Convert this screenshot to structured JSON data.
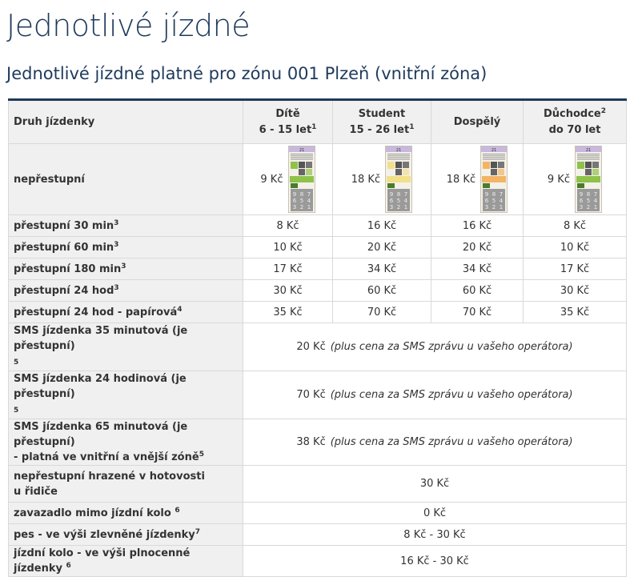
{
  "page": {
    "title": "Jednotlivé jízdné",
    "subtitle": "Jednotlivé jízdné platné pro zónu 001 Plzeň (vnitřní zóna)"
  },
  "table": {
    "header": {
      "row_label": "Druh jízdenky",
      "child_line1": "Dítě",
      "child_line2": "6 - 15 let",
      "child_sup": "1",
      "student_line1": "Student",
      "student_line2": "15 - 26 let",
      "student_sup": "1",
      "adult": "Dospělý",
      "senior_line1": "Důchodce",
      "senior_sup": "2",
      "senior_line2": "do 70 let"
    },
    "nonransfer": {
      "label": "nepřestupní",
      "child": "9 Kč",
      "student": "18 Kč",
      "adult": "18 Kč",
      "senior": "9 Kč",
      "ticket_number": "21"
    },
    "rows": [
      {
        "label": "přestupní 30 min",
        "sup": "3",
        "child": "8 Kč",
        "student": "16 Kč",
        "adult": "16 Kč",
        "senior": "8 Kč"
      },
      {
        "label": "přestupní 60 min",
        "sup": "3",
        "child": "10 Kč",
        "student": "20 Kč",
        "adult": "20 Kč",
        "senior": "10 Kč"
      },
      {
        "label": "přestupní 180 min",
        "sup": "3",
        "child": "17 Kč",
        "student": "34 Kč",
        "adult": "34 Kč",
        "senior": "17 Kč"
      },
      {
        "label": "přestupní 24 hod",
        "sup": "3",
        "child": "30 Kč",
        "student": "60 Kč",
        "adult": "60 Kč",
        "senior": "30 Kč"
      },
      {
        "label": "přestupní 24 hod - papírová",
        "sup": "4",
        "child": "35 Kč",
        "student": "70 Kč",
        "adult": "70 Kč",
        "senior": "35 Kč"
      }
    ],
    "sms_rows": [
      {
        "label_line1": "SMS jízdenka 35 minutová (je přestupní)",
        "label_line2": "5",
        "price": "20 Kč",
        "note": "(plus cena za SMS zprávu u vašeho operátora)"
      },
      {
        "label_line1": "SMS jízdenka 24 hodinová (je přestupní)",
        "label_line2": "5",
        "price": "70 Kč",
        "note": "(plus cena za SMS zprávu u vašeho operátora)"
      },
      {
        "label_line1": "SMS jízdenka 65 minutová (je přestupní)",
        "label_line2": "- platná ve vnitřní a vnější zóně",
        "label_sup": "5",
        "price": "38 Kč",
        "note": "(plus cena za SMS zprávu u vašeho operátora)"
      }
    ],
    "cash_row": {
      "label_line1": "nepřestupní hrazené v hotovosti",
      "label_line2": "u řidiče",
      "price": "30 Kč"
    },
    "misc_rows": [
      {
        "label": "zavazadlo mimo jízdní kolo ",
        "sup": "6",
        "price": "0 Kč"
      },
      {
        "label": "pes - ve výši zlevněné jízdenky",
        "sup": "7",
        "price": "8 Kč - 30 Kč"
      },
      {
        "label": "jízdní kolo - ve výši plnocenné jízdenky ",
        "sup": "6",
        "price": "16 Kč - 30 Kč"
      }
    ]
  },
  "colors": {
    "title": "#1e3a5c",
    "header_bg": "#f0f0f0",
    "border": "#d9d9d9",
    "ticket_green": "#8fc24a",
    "ticket_yellow": "#f2e08a",
    "ticket_orange": "#f3b466",
    "ticket_purple": "#c9b7e0"
  }
}
